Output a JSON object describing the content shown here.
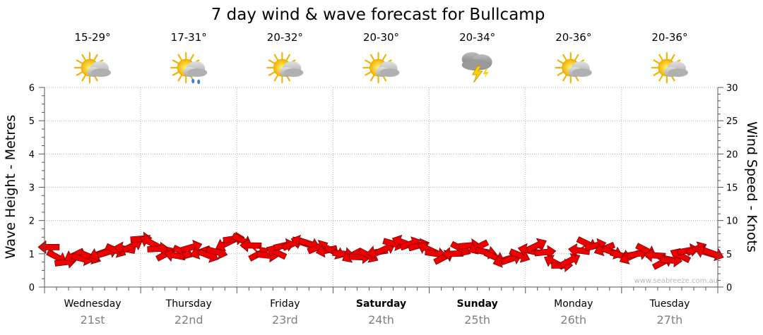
{
  "chart_data": {
    "type": "line",
    "title": "7 day wind & wave forecast for Bullcamp",
    "ylabel": "Wave Height - Metres",
    "y2label": "Wind Speed - Knots",
    "ylim": [
      0,
      6
    ],
    "y2lim": [
      0,
      30
    ],
    "yticks": [
      "0",
      "1",
      "2",
      "3",
      "4",
      "5",
      "6"
    ],
    "y2ticks": [
      "0",
      "5",
      "10",
      "15",
      "20",
      "25",
      "30"
    ],
    "grid": true,
    "days": [
      {
        "name": "Wednesday",
        "date": "21st",
        "temp": "15-29°",
        "icon": "partly-cloudy-icon",
        "bold": false
      },
      {
        "name": "Thursday",
        "date": "22nd",
        "temp": "17-31°",
        "icon": "showers-icon",
        "bold": false
      },
      {
        "name": "Friday",
        "date": "23rd",
        "temp": "20-32°",
        "icon": "partly-cloudy-icon",
        "bold": false
      },
      {
        "name": "Saturday",
        "date": "24th",
        "temp": "20-30°",
        "icon": "partly-cloudy-icon",
        "bold": true
      },
      {
        "name": "Sunday",
        "date": "25th",
        "temp": "20-34°",
        "icon": "thunderstorm-icon",
        "bold": true
      },
      {
        "name": "Monday",
        "date": "26th",
        "temp": "20-36°",
        "icon": "partly-cloudy-icon",
        "bold": false
      },
      {
        "name": "Tuesday",
        "date": "27th",
        "temp": "20-36°",
        "icon": "partly-cloudy-icon",
        "bold": false
      }
    ],
    "series": [
      {
        "values": [
          1.2,
          0.9,
          0.75,
          0.95,
          0.85,
          0.9,
          1.0,
          1.05,
          1.1,
          1.15,
          1.25,
          1.45,
          1.35,
          1.15,
          1.0,
          0.95,
          1.05,
          1.2,
          1.05,
          0.95,
          1.05,
          1.3,
          1.45,
          1.4,
          1.25,
          1.0,
          0.95,
          1.05,
          1.25,
          1.3,
          1.35,
          1.3,
          1.2,
          1.1,
          1.05,
          1.0,
          0.95,
          0.9,
          0.95,
          1.05,
          1.15,
          1.3,
          1.35,
          1.3,
          1.25,
          1.15,
          1.0,
          0.9,
          1.0,
          1.15,
          1.25,
          1.2,
          1.05,
          0.9,
          0.8,
          0.85,
          0.95,
          1.1,
          1.25,
          1.05,
          0.75,
          0.65,
          0.8,
          1.1,
          1.3,
          1.25,
          1.15,
          1.05,
          0.95,
          0.9,
          1.0,
          1.1,
          0.95,
          0.75,
          0.8,
          0.95,
          1.1,
          1.15,
          1.05,
          1.0
        ],
        "color": "#ff0000"
      }
    ],
    "watermark": "www.seabreeze.com.au"
  }
}
